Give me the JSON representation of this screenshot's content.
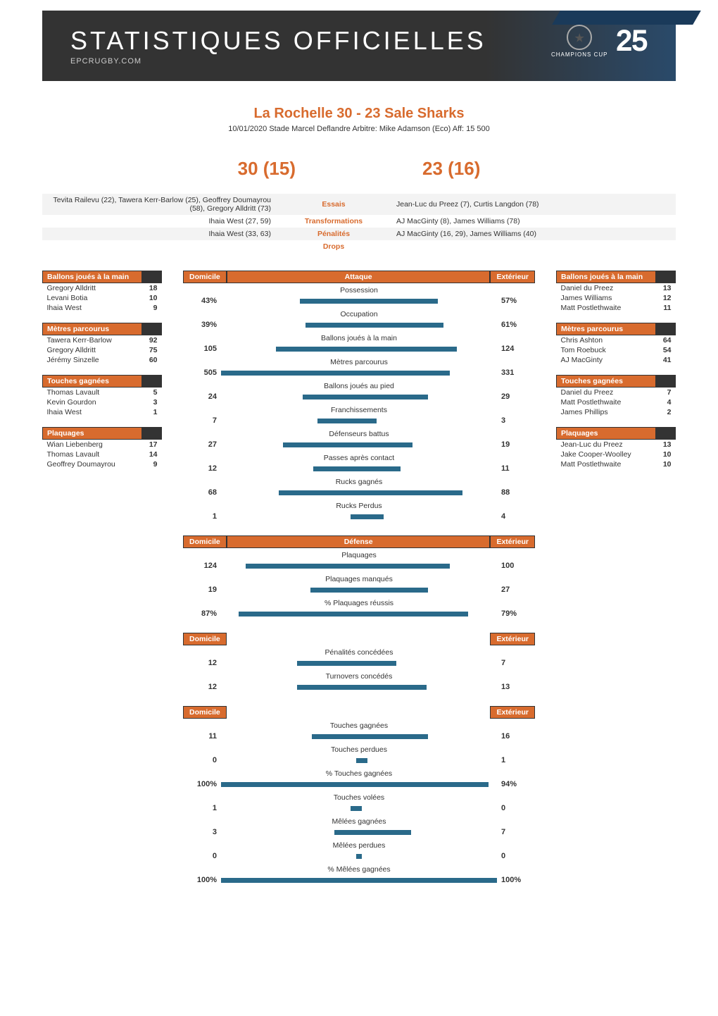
{
  "banner": {
    "title": "STATISTIQUES OFFICIELLES",
    "sub": "EPCRUGBY.COM",
    "cup_label": "CHAMPIONS CUP",
    "anniv": "25"
  },
  "match": {
    "title": "La Rochelle 30 - 23 Sale Sharks",
    "details": "10/01/2020   Stade Marcel Deflandre   Arbitre: Mike Adamson (Eco)   Aff: 15 500",
    "score_home": "30 (15)",
    "score_away": "23 (16)"
  },
  "scorers": {
    "rows": [
      {
        "home": "Tevita Railevu (22), Tawera Kerr-Barlow (25), Geoffrey Doumayrou (58), Gregory Alldritt (73)",
        "label": "Essais",
        "away": "Jean-Luc du Preez (7), Curtis Langdon (78)"
      },
      {
        "home": "Ihaia West (27, 59)",
        "label": "Transformations",
        "away": "AJ MacGinty (8), James Williams (78)"
      },
      {
        "home": "Ihaia West (33, 63)",
        "label": "Pénalités",
        "away": "AJ MacGinty (16, 29), James Williams (40)"
      },
      {
        "home": "",
        "label": "Drops",
        "away": ""
      }
    ]
  },
  "leaders_home": [
    {
      "title": "Ballons joués à la main",
      "rows": [
        {
          "name": "Gregory Alldritt",
          "val": "18"
        },
        {
          "name": "Levani Botia",
          "val": "10"
        },
        {
          "name": "Ihaia West",
          "val": "9"
        }
      ]
    },
    {
      "title": "Mètres parcourus",
      "rows": [
        {
          "name": "Tawera Kerr-Barlow",
          "val": "92"
        },
        {
          "name": "Gregory Alldritt",
          "val": "75"
        },
        {
          "name": "Jérémy Sinzelle",
          "val": "60"
        }
      ]
    },
    {
      "title": "Touches gagnées",
      "rows": [
        {
          "name": "Thomas Lavault",
          "val": "5"
        },
        {
          "name": "Kevin Gourdon",
          "val": "3"
        },
        {
          "name": "Ihaia West",
          "val": "1"
        }
      ]
    },
    {
      "title": "Plaquages",
      "rows": [
        {
          "name": "Wian Liebenberg",
          "val": "17"
        },
        {
          "name": "Thomas Lavault",
          "val": "14"
        },
        {
          "name": "Geoffrey Doumayrou",
          "val": "9"
        }
      ]
    }
  ],
  "leaders_away": [
    {
      "title": "Ballons joués à la main",
      "rows": [
        {
          "name": "Daniel du Preez",
          "val": "13"
        },
        {
          "name": "James Williams",
          "val": "12"
        },
        {
          "name": "Matt Postlethwaite",
          "val": "11"
        }
      ]
    },
    {
      "title": "Mètres parcourus",
      "rows": [
        {
          "name": "Chris Ashton",
          "val": "64"
        },
        {
          "name": "Tom Roebuck",
          "val": "54"
        },
        {
          "name": "AJ MacGinty",
          "val": "41"
        }
      ]
    },
    {
      "title": "Touches gagnées",
      "rows": [
        {
          "name": "Daniel du Preez",
          "val": "7"
        },
        {
          "name": "Matt Postlethwaite",
          "val": "4"
        },
        {
          "name": "James Phillips",
          "val": "2"
        }
      ]
    },
    {
      "title": "Plaquages",
      "rows": [
        {
          "name": "Jean-Luc du Preez",
          "val": "13"
        },
        {
          "name": "Jake Cooper-Woolley",
          "val": "10"
        },
        {
          "name": "Matt Postlethwaite",
          "val": "10"
        }
      ]
    }
  ],
  "colors": {
    "orange": "#d86b2e",
    "bar": "#2a6a8a",
    "header_dark": "#333333"
  },
  "labels": {
    "domicile": "Domicile",
    "exterieur": "Extérieur",
    "attaque": "Attaque",
    "defense": "Défense"
  },
  "sections": [
    {
      "header_mid": "Attaque",
      "show_mid": true,
      "rows": [
        {
          "label": "Possession",
          "home": "43%",
          "away": "57%",
          "hw": 43,
          "aw": 57
        },
        {
          "label": "Occupation",
          "home": "39%",
          "away": "61%",
          "hw": 39,
          "aw": 61
        },
        {
          "label": "Ballons joués à la main",
          "home": "105",
          "away": "124",
          "hw": 60,
          "aw": 71
        },
        {
          "label": "Mètres parcourus",
          "home": "505",
          "away": "331",
          "hw": 100,
          "aw": 66
        },
        {
          "label": "Ballons joués au pied",
          "home": "24",
          "away": "29",
          "hw": 41,
          "aw": 50
        },
        {
          "label": "Franchissements",
          "home": "7",
          "away": "3",
          "hw": 30,
          "aw": 13
        },
        {
          "label": "Défenseurs battus",
          "home": "27",
          "away": "19",
          "hw": 55,
          "aw": 39
        },
        {
          "label": "Passes après contact",
          "home": "12",
          "away": "11",
          "hw": 33,
          "aw": 30
        },
        {
          "label": "Rucks gagnés",
          "home": "68",
          "away": "88",
          "hw": 58,
          "aw": 75
        },
        {
          "label": "Rucks Perdus",
          "home": "1",
          "away": "4",
          "hw": 6,
          "aw": 18
        }
      ]
    },
    {
      "header_mid": "Défense",
      "show_mid": true,
      "rows": [
        {
          "label": "Plaquages",
          "home": "124",
          "away": "100",
          "hw": 82,
          "aw": 66
        },
        {
          "label": "Plaquages manqués",
          "home": "19",
          "away": "27",
          "hw": 35,
          "aw": 50
        },
        {
          "label": "% Plaquages réussis",
          "home": "87%",
          "away": "79%",
          "hw": 87,
          "aw": 79
        }
      ]
    },
    {
      "header_mid": "",
      "show_mid": false,
      "rows": [
        {
          "label": "Pénalités concédées",
          "home": "12",
          "away": "7",
          "hw": 45,
          "aw": 27
        },
        {
          "label": "Turnovers concédés",
          "home": "12",
          "away": "13",
          "hw": 45,
          "aw": 49
        }
      ]
    },
    {
      "header_mid": "",
      "show_mid": false,
      "rows": [
        {
          "label": "Touches gagnées",
          "home": "11",
          "away": "16",
          "hw": 34,
          "aw": 50
        },
        {
          "label": "Touches perdues",
          "home": "0",
          "away": "1",
          "hw": 2,
          "aw": 6
        },
        {
          "label": "% Touches gagnées",
          "home": "100%",
          "away": "94%",
          "hw": 100,
          "aw": 94
        },
        {
          "label": "Touches volées",
          "home": "1",
          "away": "0",
          "hw": 6,
          "aw": 2
        },
        {
          "label": "Mêlées gagnées",
          "home": "3",
          "away": "7",
          "hw": 18,
          "aw": 38
        },
        {
          "label": "Mêlées perdues",
          "home": "0",
          "away": "0",
          "hw": 2,
          "aw": 2
        },
        {
          "label": "% Mêlées gagnées",
          "home": "100%",
          "away": "100%",
          "hw": 100,
          "aw": 100
        }
      ]
    }
  ]
}
